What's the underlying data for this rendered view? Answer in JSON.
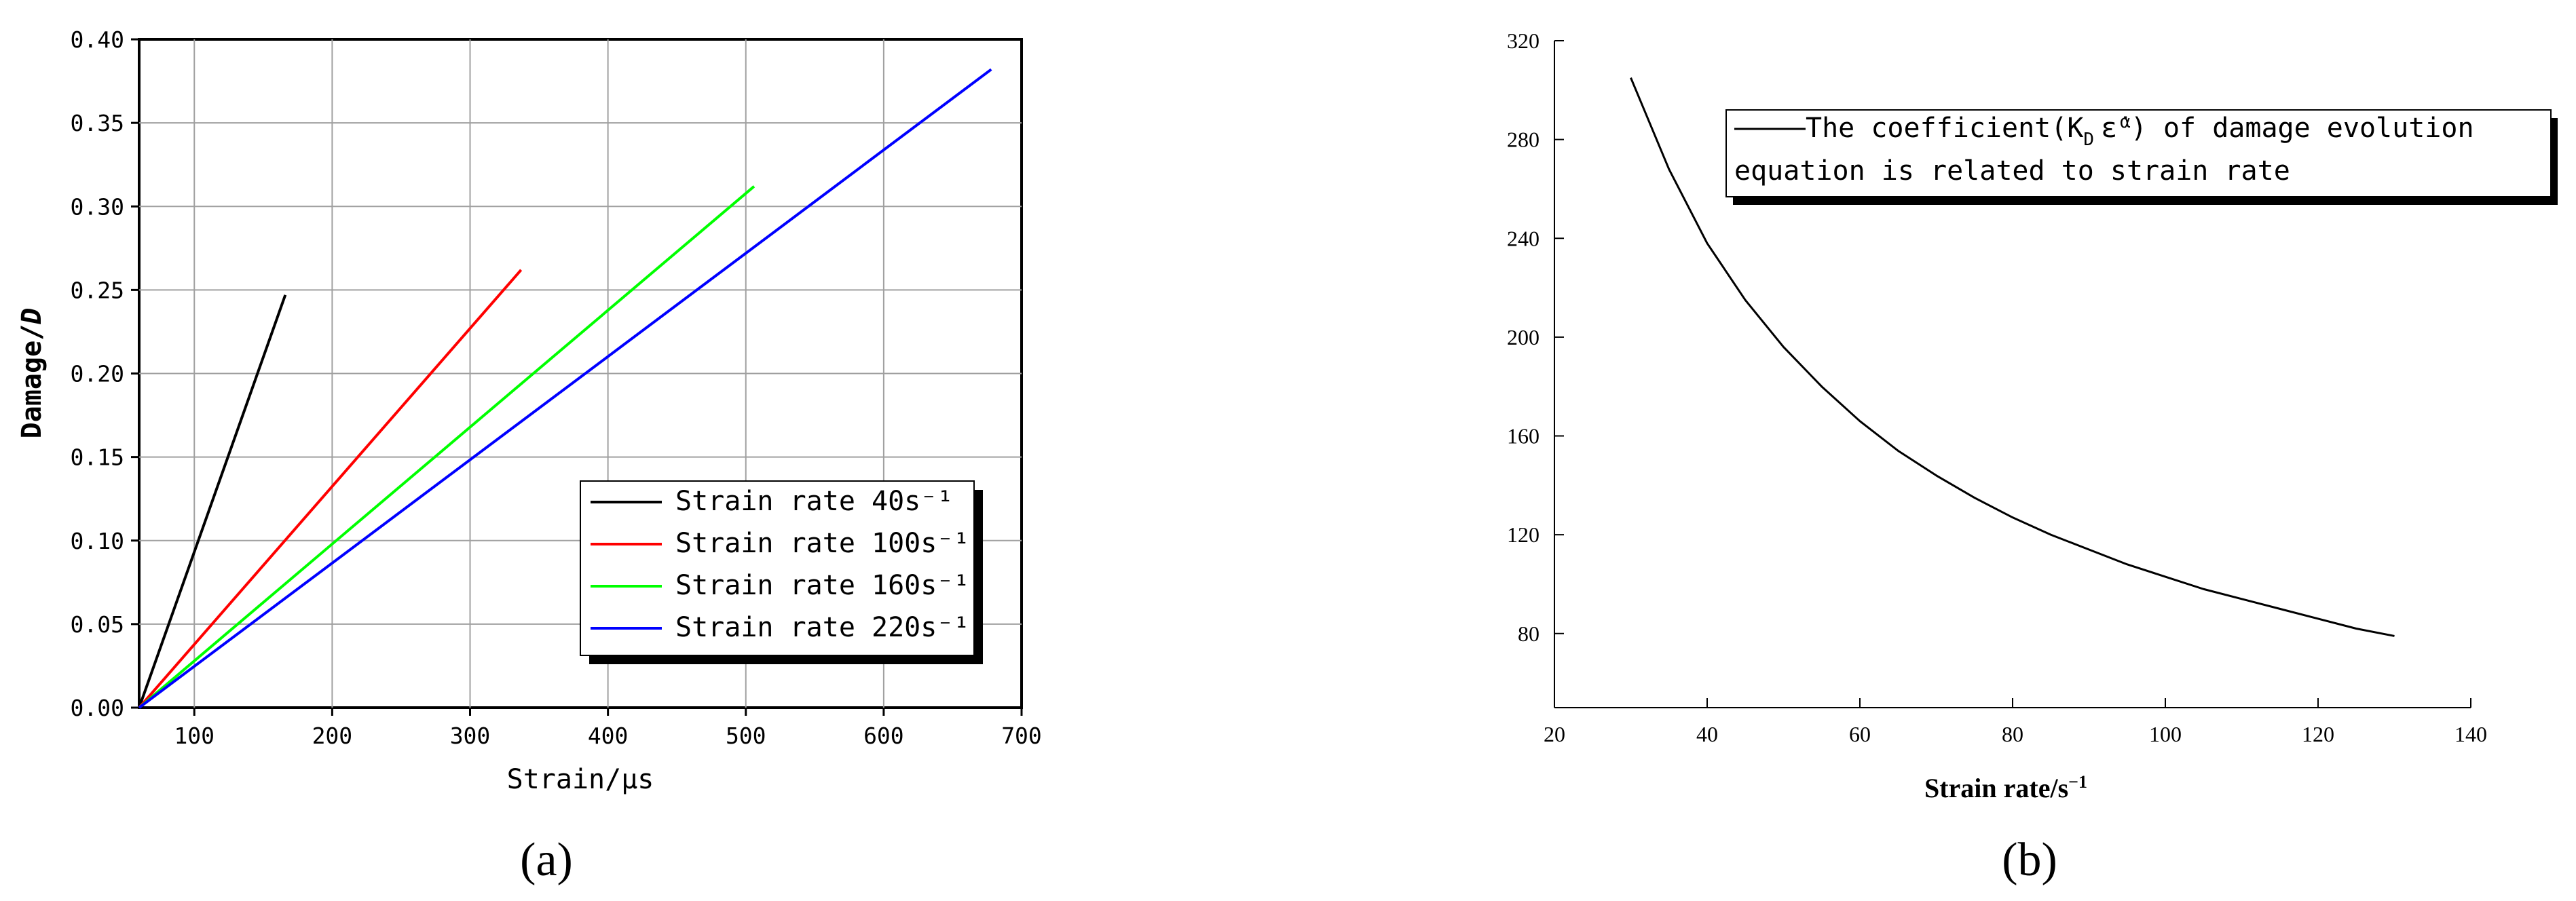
{
  "chart_data": [
    {
      "type": "line",
      "xlabel": "Strain/μs",
      "ylabel": "Damage/D",
      "xlim": [
        60,
        700
      ],
      "ylim": [
        0,
        0.4
      ],
      "xticks": [
        "100",
        "200",
        "300",
        "400",
        "500",
        "600",
        "700"
      ],
      "yticks": [
        "0.00",
        "0.05",
        "0.10",
        "0.15",
        "0.20",
        "0.25",
        "0.30",
        "0.35",
        "0.40"
      ],
      "grid": true,
      "legend_position": "bottom-right",
      "series": [
        {
          "name": "Strain rate 40s⁻¹",
          "color": "#000000",
          "x": [
            60,
            166
          ],
          "y": [
            0,
            0.247
          ]
        },
        {
          "name": "Strain rate 100s⁻¹",
          "color": "#ff0000",
          "x": [
            60,
            337
          ],
          "y": [
            0,
            0.262
          ]
        },
        {
          "name": "Strain rate 160s⁻¹",
          "color": "#00ff00",
          "x": [
            60,
            506
          ],
          "y": [
            0,
            0.312
          ]
        },
        {
          "name": "Strain rate 220s⁻¹",
          "color": "#0000ff",
          "x": [
            60,
            678
          ],
          "y": [
            0,
            0.382
          ]
        }
      ],
      "panel_label": "(a)"
    },
    {
      "type": "line",
      "xlabel": "Strain rate/s⁻¹",
      "ylabel": "",
      "xlim": [
        20,
        140
      ],
      "ylim": [
        50,
        320
      ],
      "xticks": [
        "20",
        "40",
        "60",
        "80",
        "100",
        "120",
        "140"
      ],
      "yticks": [
        "80",
        "120",
        "160",
        "200",
        "240",
        "280",
        "320"
      ],
      "grid": false,
      "legend_position": "top-right",
      "legend_text": [
        "The coefficient(K",
        "D",
        "ε̇",
        "α",
        ") of damage evolution",
        "equation is related to strain rate"
      ],
      "series": [
        {
          "name": "The coefficient(KDε̇α) of damage evolution equation is related to strain rate",
          "color": "#000000",
          "x": [
            30,
            35,
            40,
            45,
            50,
            55,
            60,
            65,
            70,
            75,
            80,
            85,
            90,
            95,
            100,
            105,
            110,
            115,
            120,
            125,
            130
          ],
          "y": [
            305,
            268,
            238,
            215,
            196,
            180,
            166,
            154,
            144,
            135,
            127,
            120,
            114,
            108,
            103,
            98,
            94,
            90,
            86,
            82,
            79
          ]
        }
      ],
      "panel_label": "(b)"
    }
  ]
}
